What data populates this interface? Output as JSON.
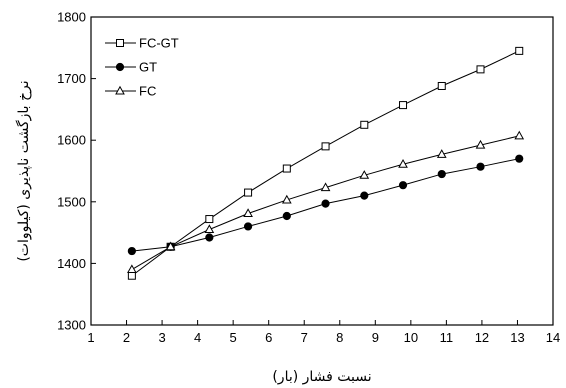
{
  "chart_data": {
    "type": "line",
    "xlabel": "نسبت فشار (بار)",
    "ylabel": "نرخ بازگشت ناپذیری (کیلووات)",
    "xlim": [
      1,
      14
    ],
    "ylim": [
      1300,
      1800
    ],
    "xticks": [
      1,
      2,
      3,
      4,
      5,
      6,
      7,
      8,
      9,
      10,
      11,
      12,
      13,
      14
    ],
    "yticks": [
      1300,
      1400,
      1500,
      1600,
      1700,
      1800
    ],
    "x": [
      2.15,
      3.24,
      4.33,
      5.42,
      6.51,
      7.6,
      8.69,
      9.78,
      10.87,
      11.96,
      13.05
    ],
    "grid": false,
    "legend_position": "top-left",
    "series": [
      {
        "name": "FC-GT",
        "marker": "square-open",
        "values": [
          1380,
          1427,
          1472,
          1515,
          1554,
          1590,
          1625,
          1657,
          1688,
          1715,
          1745
        ]
      },
      {
        "name": "GT",
        "marker": "circle-filled",
        "values": [
          1420,
          1427,
          1442,
          1460,
          1477,
          1497,
          1510,
          1527,
          1545,
          1557,
          1570
        ]
      },
      {
        "name": "FC",
        "marker": "triangle-open",
        "values": [
          1390,
          1427,
          1455,
          1481,
          1503,
          1523,
          1543,
          1561,
          1577,
          1592,
          1607
        ]
      }
    ]
  }
}
